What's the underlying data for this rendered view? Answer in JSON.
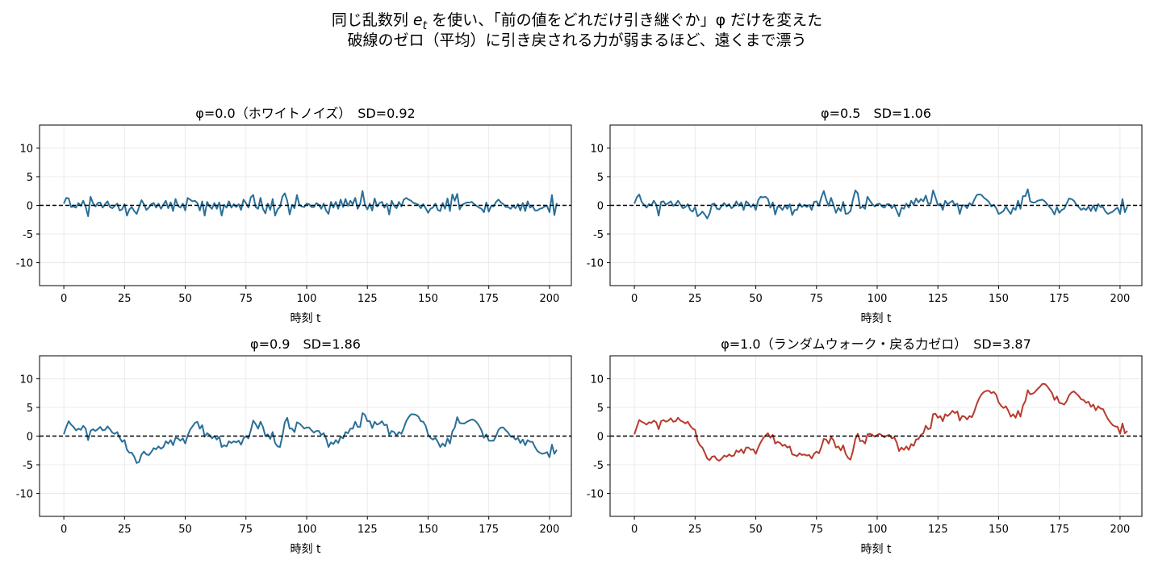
{
  "figure": {
    "suptitle_line1_a": "同じ乱数列 ",
    "suptitle_line1_e": "e",
    "suptitle_line1_t": "t",
    "suptitle_line1_b": " を使い、「前の値をどれだけ引き継ぐか」φ だけを変えた",
    "suptitle_line2": "破線のゼロ（平均）に引き戻される力が弱まるほど、遠くまで漂う"
  },
  "chart_data": [
    {
      "type": "line",
      "title": "φ=0.0（ホワイトノイズ）　SD=0.92",
      "xlabel": "時刻 t",
      "ylabel": "",
      "xlim": [
        -10,
        209
      ],
      "ylim": [
        -14,
        14
      ],
      "xticks": [
        0,
        25,
        50,
        75,
        100,
        125,
        150,
        175,
        200
      ],
      "yticks": [
        10,
        5,
        0,
        -5,
        -10
      ],
      "reference_line": 0,
      "grid": true,
      "color": "#2a6f97",
      "series": [
        {
          "x_start": 0,
          "x_step": 1,
          "values": [
            0.3,
            1.3,
            1.2,
            -0.3,
            -0.2,
            -0.4,
            0.4,
            -0.1,
            0.8,
            -0.3,
            -1.9,
            1.5,
            0.4,
            -0.2,
            0.4,
            0.5,
            -0.4,
            0.2,
            0.7,
            -0.3,
            -0.5,
            -0.1,
            0.3,
            -0.9,
            -0.7,
            0.2,
            -1.8,
            -0.7,
            -0.3,
            -1.0,
            -1.5,
            -0.3,
            0.9,
            0.2,
            -0.8,
            -0.4,
            0.2,
            0.4,
            -0.4,
            0.3,
            -0.6,
            0.1,
            0.8,
            -0.5,
            0.5,
            -1.0,
            1.1,
            -0.1,
            -0.4,
            0.3,
            -0.9,
            1.3,
            1.0,
            0.7,
            0.8,
            0.4,
            -0.9,
            0.7,
            -1.8,
            0.6,
            -0.2,
            -0.6,
            0.4,
            -0.6,
            0.5,
            -1.8,
            0.1,
            -0.4,
            0.7,
            -0.4,
            0.2,
            -0.3,
            0.2,
            -0.8,
            1.0,
            0.4,
            -0.4,
            1.4,
            1.8,
            -0.3,
            -0.6,
            1.3,
            -0.6,
            -1.4,
            0.3,
            -0.8,
            1.1,
            -1.8,
            -0.7,
            -0.3,
            1.5,
            2.1,
            0.8,
            -1.6,
            0.1,
            -0.5,
            1.8,
            0.1,
            -0.2,
            -0.3,
            0.3,
            0.2,
            -0.3,
            -0.3,
            0.4,
            0.1,
            -0.6,
            0.3,
            -0.9,
            -1.5,
            0.6,
            -0.4,
            0.6,
            -0.6,
            1.0,
            -0.3,
            1.1,
            -0.1,
            0.8,
            0.2,
            1.3,
            -0.6,
            0.2,
            2.5,
            0.1,
            -0.7,
            0.3,
            -0.9,
            1.2,
            -0.2,
            0.4,
            0.6,
            -0.4,
            0.3,
            -1.6,
            0.8,
            -0.1,
            -0.5,
            0.6,
            -0.2,
            1.0,
            1.3,
            1.0,
            0.8,
            0.4,
            0.3,
            0.1,
            -0.5,
            0.2,
            -0.5,
            -1.3,
            -0.6,
            -0.4,
            0.3,
            -0.8,
            -1.0,
            0.4,
            -0.6,
            1.2,
            -1.0,
            1.9,
            0.8,
            2.0,
            -0.7,
            0.1,
            0.3,
            0.5,
            0.5,
            0.6,
            0.2,
            -0.1,
            -0.4,
            -0.6,
            -1.2,
            0.5,
            -1.1,
            -0.1,
            -0.2,
            0.6,
            1.0,
            0.5,
            0.2,
            -0.3,
            -0.3,
            -0.6,
            -0.1,
            -0.5,
            0.2,
            -0.9,
            0.4,
            -1.0,
            0.7,
            -0.4,
            -0.1,
            -0.9,
            -0.9,
            -0.6,
            -0.5,
            -0.2,
            -0.1,
            -1.2,
            1.8,
            -1.7,
            0.4
          ]
        }
      ]
    },
    {
      "type": "line",
      "title": "φ=0.5　SD=1.06",
      "xlabel": "時刻 t",
      "ylabel": "",
      "xlim": [
        -10,
        209
      ],
      "ylim": [
        -14,
        14
      ],
      "xticks": [
        0,
        25,
        50,
        75,
        100,
        125,
        150,
        175,
        200
      ],
      "yticks": [
        10,
        5,
        0,
        -5,
        -10
      ],
      "reference_line": 0,
      "grid": true,
      "color": "#2a6f97",
      "series": [
        {
          "x_start": 0,
          "x_step": 1,
          "values": [
            0.3,
            1.4,
            1.9,
            0.6,
            0.1,
            -0.4,
            0.2,
            0.0,
            0.8,
            0.1,
            -1.8,
            0.6,
            0.7,
            0.1,
            0.4,
            0.7,
            -0.1,
            0.2,
            0.8,
            0.1,
            -0.5,
            -0.3,
            0.2,
            -0.8,
            -1.1,
            -0.3,
            -1.9,
            -1.6,
            -1.1,
            -1.6,
            -2.3,
            -1.4,
            0.2,
            0.3,
            -0.6,
            -0.7,
            -0.1,
            0.4,
            -0.2,
            0.2,
            -0.5,
            -0.2,
            0.7,
            -0.1,
            0.5,
            -0.8,
            0.7,
            0.3,
            -0.3,
            0.2,
            -0.8,
            0.9,
            1.5,
            1.4,
            1.5,
            1.1,
            -0.4,
            0.5,
            -1.6,
            -0.2,
            -0.3,
            -0.8,
            0.0,
            -0.6,
            0.2,
            -1.7,
            -0.8,
            -0.8,
            0.3,
            -0.3,
            0.1,
            -0.3,
            0.1,
            -0.8,
            0.6,
            0.7,
            -0.1,
            1.4,
            2.5,
            1.0,
            -0.1,
            1.3,
            0.1,
            -1.3,
            -0.4,
            -1.0,
            0.6,
            -1.5,
            -1.4,
            -1.0,
            1.0,
            2.6,
            2.1,
            -0.5,
            -0.2,
            -0.6,
            1.5,
            0.8,
            0.2,
            -0.2,
            0.2,
            0.3,
            -0.2,
            -0.4,
            0.2,
            0.2,
            -0.5,
            0.1,
            -0.9,
            -1.9,
            -0.4,
            -0.6,
            0.3,
            -0.4,
            0.8,
            0.1,
            1.2,
            0.5,
            1.1,
            0.7,
            1.7,
            0.3,
            0.3,
            2.6,
            1.4,
            0.0,
            0.3,
            -0.8,
            0.8,
            0.2,
            0.5,
            0.8,
            0.0,
            0.3,
            -1.5,
            0.0,
            0.0,
            -0.5,
            0.4,
            0.0,
            1.0,
            1.8,
            1.9,
            1.8,
            1.3,
            1.0,
            0.6,
            -0.2,
            0.1,
            -0.5,
            -1.5,
            -1.3,
            -1.0,
            -0.2,
            -0.9,
            -1.5,
            -0.4,
            -0.8,
            0.8,
            -0.6,
            1.6,
            1.6,
            2.8,
            0.7,
            0.5,
            0.5,
            0.8,
            0.9,
            1.0,
            0.7,
            0.2,
            -0.3,
            -0.8,
            -1.6,
            -0.3,
            -1.3,
            -0.8,
            -0.6,
            0.3,
            1.2,
            1.1,
            0.8,
            0.1,
            -0.3,
            -0.8,
            -0.5,
            -0.8,
            -0.2,
            -1.0,
            0.0,
            -1.0,
            0.2,
            -0.3,
            -0.3,
            -1.1,
            -1.5,
            -1.3,
            -1.1,
            -0.7,
            -0.4,
            -1.5,
            1.1,
            -1.2,
            -0.2
          ]
        }
      ]
    },
    {
      "type": "line",
      "title": "φ=0.9　SD=1.86",
      "xlabel": "時刻 t",
      "ylabel": "",
      "xlim": [
        -10,
        209
      ],
      "ylim": [
        -14,
        14
      ],
      "xticks": [
        0,
        25,
        50,
        75,
        100,
        125,
        150,
        175,
        200
      ],
      "yticks": [
        10,
        5,
        0,
        -5,
        -10
      ],
      "reference_line": 0,
      "grid": true,
      "color": "#2a6f97",
      "series": [
        {
          "x_start": 0,
          "x_step": 1,
          "values": [
            0.3,
            1.6,
            2.6,
            2.0,
            1.6,
            1.0,
            1.3,
            1.1,
            1.8,
            1.3,
            -0.7,
            0.9,
            1.2,
            0.9,
            1.2,
            1.6,
            1.0,
            1.1,
            1.7,
            1.2,
            0.6,
            0.4,
            0.7,
            -0.3,
            -1.0,
            -0.7,
            -2.4,
            -2.9,
            -2.9,
            -3.6,
            -4.7,
            -4.5,
            -3.2,
            -2.7,
            -3.2,
            -3.3,
            -2.8,
            -2.1,
            -2.3,
            -1.8,
            -2.2,
            -1.9,
            -0.9,
            -1.3,
            -0.7,
            -1.6,
            -0.3,
            -0.4,
            -0.8,
            -0.4,
            -1.3,
            0.1,
            1.1,
            1.7,
            2.3,
            2.5,
            1.3,
            1.9,
            -0.1,
            0.5,
            0.2,
            -0.4,
            0.0,
            -0.6,
            -0.1,
            -1.9,
            -1.6,
            -1.8,
            -0.9,
            -1.2,
            -0.9,
            -1.1,
            -0.8,
            -1.5,
            -0.4,
            0.0,
            -0.4,
            1.0,
            2.7,
            2.1,
            1.3,
            2.5,
            1.6,
            0.0,
            0.3,
            -0.5,
            0.7,
            -1.2,
            -1.8,
            -1.9,
            0.0,
            2.4,
            3.2,
            1.3,
            1.3,
            0.7,
            2.4,
            2.2,
            1.8,
            1.3,
            1.5,
            1.5,
            1.0,
            0.6,
            0.9,
            0.9,
            0.2,
            0.5,
            -0.4,
            -1.9,
            -1.1,
            -1.4,
            -0.7,
            -1.2,
            -0.1,
            -0.4,
            0.7,
            0.5,
            1.3,
            1.3,
            2.5,
            1.6,
            1.6,
            4.0,
            3.7,
            2.6,
            2.6,
            1.4,
            2.5,
            2.0,
            2.2,
            2.6,
            1.9,
            2.0,
            0.2,
            0.9,
            0.7,
            0.1,
            0.7,
            0.4,
            1.4,
            2.6,
            3.3,
            3.8,
            3.8,
            3.7,
            3.4,
            2.6,
            2.5,
            1.8,
            0.3,
            -0.3,
            -0.6,
            -0.3,
            -1.0,
            -1.9,
            -1.3,
            -1.8,
            -0.4,
            -1.3,
            0.8,
            1.5,
            3.3,
            2.3,
            2.2,
            2.2,
            2.5,
            2.7,
            2.9,
            2.8,
            2.4,
            1.8,
            1.0,
            -0.3,
            0.3,
            -0.8,
            -0.8,
            -0.8,
            0.0,
            1.1,
            1.5,
            1.5,
            1.0,
            0.6,
            -0.1,
            -0.1,
            -0.6,
            -0.3,
            -1.2,
            -0.6,
            -1.6,
            -0.7,
            -1.0,
            -1.0,
            -1.9,
            -2.6,
            -2.9,
            -3.1,
            -3.0,
            -2.8,
            -3.7,
            -1.5,
            -3.1,
            -2.4
          ]
        }
      ]
    },
    {
      "type": "line",
      "title": "φ=1.0（ランダムウォーク・戻る力ゼロ）　SD=3.87",
      "xlabel": "時刻 t",
      "ylabel": "",
      "xlim": [
        -10,
        209
      ],
      "ylim": [
        -14,
        14
      ],
      "xticks": [
        0,
        25,
        50,
        75,
        100,
        125,
        150,
        175,
        200
      ],
      "yticks": [
        10,
        5,
        0,
        -5,
        -10
      ],
      "reference_line": 0,
      "grid": true,
      "color": "#b83b2e",
      "series": [
        {
          "x_start": 0,
          "x_step": 1,
          "values": [
            0.3,
            1.6,
            2.8,
            2.5,
            2.3,
            2.0,
            2.4,
            2.3,
            2.7,
            2.4,
            1.2,
            2.6,
            2.8,
            2.5,
            2.7,
            3.1,
            2.5,
            2.6,
            3.2,
            2.7,
            2.5,
            2.2,
            2.5,
            1.8,
            1.3,
            1.1,
            -0.8,
            -1.6,
            -2.0,
            -2.9,
            -3.9,
            -4.2,
            -3.6,
            -3.5,
            -4.1,
            -4.3,
            -3.9,
            -3.4,
            -3.6,
            -3.2,
            -3.5,
            -3.4,
            -2.5,
            -2.8,
            -2.3,
            -3.0,
            -2.0,
            -2.0,
            -2.4,
            -2.3,
            -3.1,
            -2.0,
            -1.1,
            -0.4,
            0.1,
            0.5,
            -0.3,
            0.2,
            -1.3,
            -1.0,
            -1.2,
            -1.7,
            -1.5,
            -2.0,
            -1.8,
            -3.2,
            -3.3,
            -3.5,
            -3.0,
            -3.3,
            -3.2,
            -3.4,
            -3.3,
            -3.9,
            -3.1,
            -2.7,
            -3.0,
            -1.9,
            -0.5,
            -0.6,
            -1.3,
            -0.2,
            -0.7,
            -2.0,
            -1.8,
            -2.5,
            -1.6,
            -3.1,
            -3.8,
            -4.1,
            -2.6,
            -0.5,
            0.4,
            -0.9,
            -0.8,
            -1.3,
            0.3,
            0.4,
            0.2,
            -0.1,
            0.2,
            0.4,
            0.1,
            -0.2,
            0.1,
            0.2,
            -0.4,
            -0.2,
            -1.1,
            -2.6,
            -2.0,
            -2.4,
            -1.8,
            -2.4,
            -1.4,
            -1.7,
            -0.6,
            -0.5,
            0.2,
            0.5,
            1.8,
            1.2,
            1.4,
            3.8,
            3.9,
            3.2,
            3.5,
            2.6,
            3.8,
            3.5,
            3.9,
            4.4,
            4.0,
            4.3,
            2.7,
            3.5,
            3.4,
            2.9,
            3.5,
            3.3,
            4.3,
            5.6,
            6.6,
            7.3,
            7.7,
            7.9,
            7.9,
            7.5,
            7.7,
            7.2,
            5.9,
            5.3,
            4.9,
            5.2,
            4.4,
            3.4,
            3.8,
            3.2,
            4.4,
            3.4,
            5.3,
            6.1,
            8.0,
            7.3,
            7.4,
            7.7,
            8.2,
            8.6,
            9.1,
            9.1,
            8.7,
            8.1,
            7.5,
            6.3,
            6.9,
            5.8,
            5.7,
            5.5,
            6.1,
            7.1,
            7.6,
            7.8,
            7.4,
            7.0,
            6.4,
            6.3,
            5.8,
            6.0,
            5.1,
            5.5,
            4.5,
            5.2,
            4.8,
            4.7,
            3.8,
            3.0,
            2.4,
            1.9,
            1.7,
            1.6,
            0.4,
            2.2,
            0.5,
            0.9
          ]
        }
      ]
    }
  ]
}
